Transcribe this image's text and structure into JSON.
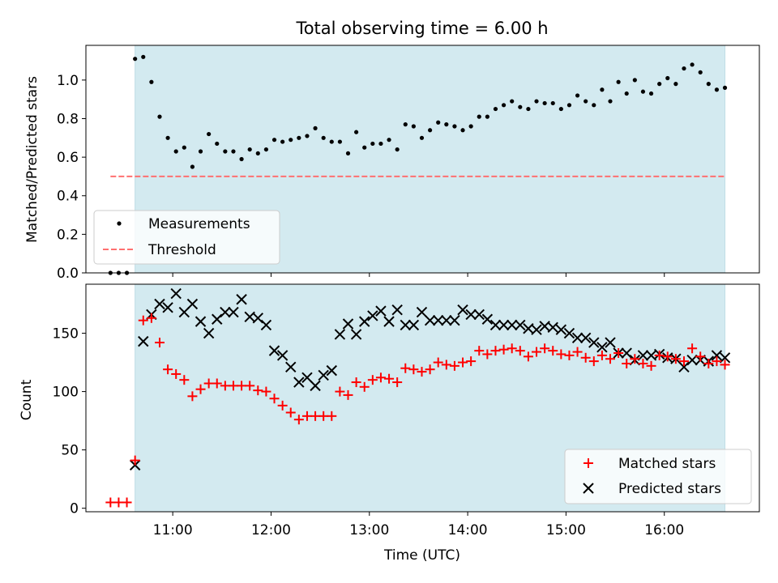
{
  "chart_data": [
    {
      "type": "scatter",
      "title": "Total observing time = 6.00 h",
      "xlabel": "",
      "ylabel": "Matched/Predicted stars",
      "xlim": [
        "10:07",
        "16:58"
      ],
      "ylim": [
        0,
        1.18
      ],
      "yticks": [
        "0.0",
        "0.2",
        "0.4",
        "0.6",
        "0.8",
        "1.0"
      ],
      "ytick_values": [
        0,
        0.2,
        0.4,
        0.6,
        0.8,
        1.0
      ],
      "x_tick_values": [
        "11:00",
        "12:00",
        "13:00",
        "14:00",
        "15:00",
        "16:00"
      ],
      "shaded_span": [
        "10:37",
        "16:37"
      ],
      "legend": [
        "Measurements",
        "Threshold"
      ],
      "legend_position": "lower left",
      "threshold": {
        "name": "Threshold",
        "y": 0.5,
        "x": [
          "10:22",
          "16:37"
        ]
      },
      "series": [
        {
          "name": "Measurements",
          "x": [
            "10:22",
            "10:27",
            "10:32",
            "10:37",
            "10:42",
            "10:47",
            "10:52",
            "10:57",
            "11:02",
            "11:07",
            "11:12",
            "11:17",
            "11:22",
            "11:27",
            "11:32",
            "11:37",
            "11:42",
            "11:47",
            "11:52",
            "11:57",
            "12:02",
            "12:07",
            "12:12",
            "12:17",
            "12:22",
            "12:27",
            "12:32",
            "12:37",
            "12:42",
            "12:47",
            "12:52",
            "12:57",
            "13:02",
            "13:07",
            "13:12",
            "13:17",
            "13:22",
            "13:27",
            "13:32",
            "13:37",
            "13:42",
            "13:47",
            "13:52",
            "13:57",
            "14:02",
            "14:07",
            "14:12",
            "14:17",
            "14:22",
            "14:27",
            "14:32",
            "14:37",
            "14:42",
            "14:47",
            "14:52",
            "14:57",
            "15:02",
            "15:07",
            "15:12",
            "15:17",
            "15:22",
            "15:27",
            "15:32",
            "15:37",
            "15:42",
            "15:47",
            "15:52",
            "15:57",
            "16:02",
            "16:07",
            "16:12",
            "16:17",
            "16:22",
            "16:27",
            "16:32",
            "16:37"
          ],
          "y": [
            0,
            0,
            0,
            1.11,
            1.12,
            0.99,
            0.81,
            0.7,
            0.63,
            0.65,
            0.55,
            0.63,
            0.72,
            0.67,
            0.63,
            0.63,
            0.59,
            0.64,
            0.62,
            0.64,
            0.69,
            0.68,
            0.69,
            0.7,
            0.71,
            0.75,
            0.7,
            0.68,
            0.68,
            0.62,
            0.73,
            0.65,
            0.67,
            0.67,
            0.69,
            0.64,
            0.77,
            0.76,
            0.7,
            0.74,
            0.78,
            0.77,
            0.76,
            0.74,
            0.76,
            0.81,
            0.81,
            0.85,
            0.87,
            0.89,
            0.86,
            0.85,
            0.89,
            0.88,
            0.88,
            0.85,
            0.87,
            0.92,
            0.89,
            0.87,
            0.95,
            0.89,
            0.99,
            0.93,
            1.0,
            0.94,
            0.93,
            0.98,
            1.01,
            0.98,
            1.06,
            1.08,
            1.04,
            0.98,
            0.95,
            0.96
          ]
        }
      ]
    },
    {
      "type": "scatter",
      "title": "",
      "xlabel": "Time (UTC)",
      "ylabel": "Count",
      "xlim": [
        "10:07",
        "16:58"
      ],
      "ylim": [
        -3,
        192
      ],
      "yticks": [
        "0",
        "50",
        "100",
        "150"
      ],
      "ytick_values": [
        0,
        50,
        100,
        150
      ],
      "xticks": [
        "11:00",
        "12:00",
        "13:00",
        "14:00",
        "15:00",
        "16:00"
      ],
      "x_tick_values": [
        "11:00",
        "12:00",
        "13:00",
        "14:00",
        "15:00",
        "16:00"
      ],
      "shaded_span": [
        "10:37",
        "16:37"
      ],
      "legend": [
        "Matched stars",
        "Predicted stars"
      ],
      "legend_position": "lower right",
      "x": [
        "10:22",
        "10:27",
        "10:32",
        "10:37",
        "10:42",
        "10:47",
        "10:52",
        "10:57",
        "11:02",
        "11:07",
        "11:12",
        "11:17",
        "11:22",
        "11:27",
        "11:32",
        "11:37",
        "11:42",
        "11:47",
        "11:52",
        "11:57",
        "12:02",
        "12:07",
        "12:12",
        "12:17",
        "12:22",
        "12:27",
        "12:32",
        "12:37",
        "12:42",
        "12:47",
        "12:52",
        "12:57",
        "13:02",
        "13:07",
        "13:12",
        "13:17",
        "13:22",
        "13:27",
        "13:32",
        "13:37",
        "13:42",
        "13:47",
        "13:52",
        "13:57",
        "14:02",
        "14:07",
        "14:12",
        "14:17",
        "14:22",
        "14:27",
        "14:32",
        "14:37",
        "14:42",
        "14:47",
        "14:52",
        "14:57",
        "15:02",
        "15:07",
        "15:12",
        "15:17",
        "15:22",
        "15:27",
        "15:32",
        "15:37",
        "15:42",
        "15:47",
        "15:52",
        "15:57",
        "16:02",
        "16:07",
        "16:12",
        "16:17",
        "16:22",
        "16:27",
        "16:32",
        "16:37"
      ],
      "series": [
        {
          "name": "Matched stars",
          "marker": "+",
          "color": "#ff0000",
          "values": [
            5,
            5,
            5,
            41,
            161,
            163,
            142,
            119,
            115,
            110,
            96,
            102,
            107,
            107,
            105,
            105,
            105,
            105,
            101,
            100,
            94,
            88,
            82,
            76,
            79,
            79,
            79,
            79,
            100,
            97,
            108,
            104,
            110,
            112,
            111,
            108,
            120,
            119,
            117,
            119,
            125,
            123,
            122,
            125,
            126,
            135,
            132,
            135,
            136,
            137,
            135,
            130,
            134,
            137,
            135,
            132,
            131,
            134,
            129,
            126,
            131,
            128,
            133,
            124,
            128,
            124,
            122,
            131,
            130,
            128,
            126,
            137,
            130,
            124,
            126,
            123
          ]
        },
        {
          "name": "Predicted stars",
          "marker": "x",
          "color": "#000000",
          "values": [
            null,
            null,
            null,
            37,
            143,
            166,
            175,
            172,
            184,
            168,
            175,
            160,
            150,
            162,
            168,
            168,
            179,
            164,
            163,
            157,
            135,
            131,
            121,
            108,
            112,
            105,
            114,
            118,
            149,
            158,
            149,
            160,
            165,
            169,
            160,
            170,
            157,
            157,
            168,
            161,
            161,
            161,
            161,
            170,
            166,
            166,
            162,
            157,
            157,
            157,
            157,
            154,
            153,
            156,
            155,
            153,
            150,
            146,
            146,
            142,
            138,
            142,
            133,
            133,
            127,
            131,
            131,
            132,
            129,
            128,
            121,
            127,
            127,
            126,
            131,
            129
          ]
        }
      ]
    }
  ]
}
